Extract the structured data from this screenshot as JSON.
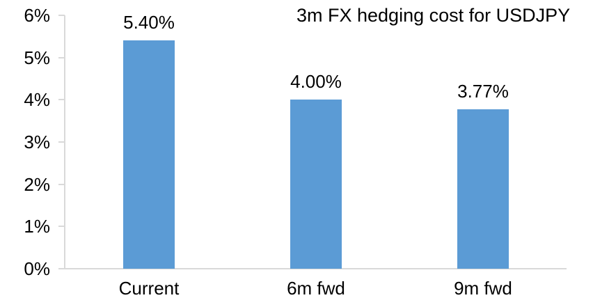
{
  "chart_data": {
    "type": "bar",
    "title": "3m FX hedging cost for USDJPY",
    "categories": [
      "Current",
      "6m fwd",
      "9m fwd"
    ],
    "values": [
      5.4,
      4.0,
      3.77
    ],
    "value_labels": [
      "5.40%",
      "4.00%",
      "3.77%"
    ],
    "ylabel": "",
    "xlabel": "",
    "ylim": [
      0,
      6
    ],
    "yticks": [
      0,
      1,
      2,
      3,
      4,
      5,
      6
    ],
    "ytick_labels": [
      "0%",
      "1%",
      "2%",
      "3%",
      "4%",
      "5%",
      "6%"
    ],
    "grid": false,
    "legend": false,
    "colors": {
      "bar": "#5B9BD5",
      "axis": "#D9D9D9",
      "text": "#000000",
      "background": "#FFFFFF"
    }
  }
}
